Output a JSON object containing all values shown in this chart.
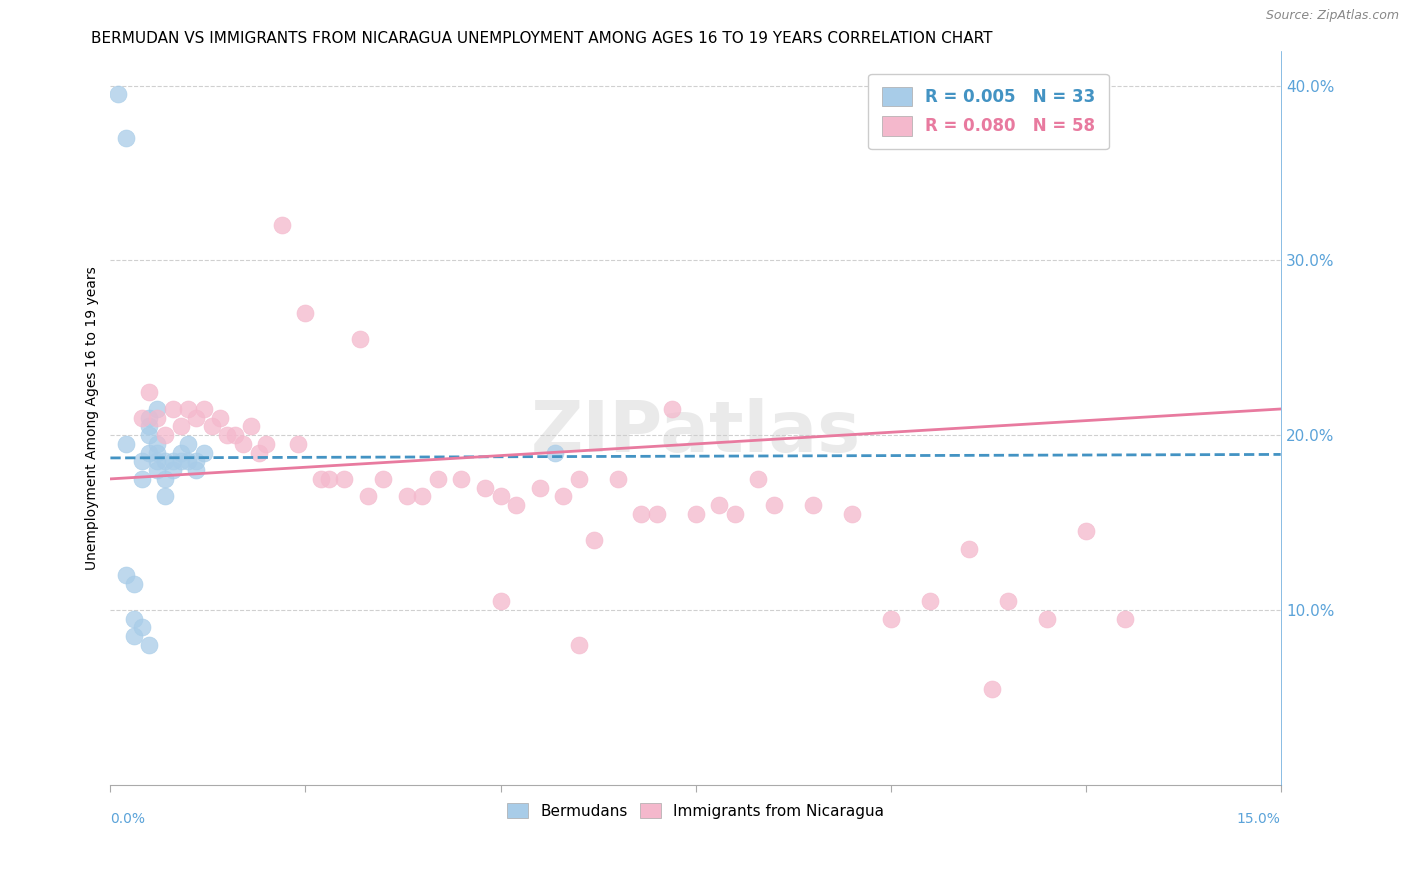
{
  "title": "BERMUDAN VS IMMIGRANTS FROM NICARAGUA UNEMPLOYMENT AMONG AGES 16 TO 19 YEARS CORRELATION CHART",
  "source": "Source: ZipAtlas.com",
  "ylabel": "Unemployment Among Ages 16 to 19 years",
  "xmin": 0.0,
  "xmax": 0.15,
  "ymin": 0.0,
  "ymax": 0.42,
  "legend_blue_R": "0.005",
  "legend_blue_N": "33",
  "legend_pink_R": "0.080",
  "legend_pink_N": "58",
  "watermark": "ZIPatlas",
  "blue_color": "#a8cce8",
  "pink_color": "#f4b8cc",
  "blue_line_color": "#4393c3",
  "pink_line_color": "#e87a9f",
  "blue_line_x0": 0.0,
  "blue_line_y0": 0.187,
  "blue_line_x1": 0.15,
  "blue_line_y1": 0.189,
  "pink_line_x0": 0.0,
  "pink_line_y0": 0.175,
  "pink_line_x1": 0.15,
  "pink_line_y1": 0.215,
  "right_yticks": [
    0.0,
    0.1,
    0.2,
    0.3,
    0.4
  ],
  "right_yticklabels": [
    "",
    "10.0%",
    "20.0%",
    "30.0%",
    "40.0%"
  ],
  "bermudans_x": [
    0.001,
    0.002,
    0.002,
    0.002,
    0.003,
    0.003,
    0.003,
    0.004,
    0.004,
    0.004,
    0.005,
    0.005,
    0.005,
    0.005,
    0.005,
    0.006,
    0.006,
    0.006,
    0.006,
    0.006,
    0.007,
    0.007,
    0.007,
    0.008,
    0.008,
    0.009,
    0.009,
    0.01,
    0.01,
    0.011,
    0.011,
    0.012,
    0.057
  ],
  "bermudans_y": [
    0.395,
    0.37,
    0.195,
    0.12,
    0.115,
    0.095,
    0.085,
    0.185,
    0.175,
    0.09,
    0.21,
    0.205,
    0.2,
    0.19,
    0.08,
    0.215,
    0.195,
    0.19,
    0.185,
    0.18,
    0.185,
    0.175,
    0.165,
    0.185,
    0.18,
    0.19,
    0.185,
    0.195,
    0.185,
    0.185,
    0.18,
    0.19,
    0.19
  ],
  "nicaragua_x": [
    0.004,
    0.005,
    0.006,
    0.007,
    0.008,
    0.009,
    0.01,
    0.011,
    0.012,
    0.013,
    0.014,
    0.015,
    0.016,
    0.017,
    0.018,
    0.019,
    0.02,
    0.022,
    0.024,
    0.025,
    0.027,
    0.028,
    0.03,
    0.032,
    0.033,
    0.035,
    0.038,
    0.04,
    0.042,
    0.045,
    0.048,
    0.05,
    0.052,
    0.055,
    0.058,
    0.06,
    0.062,
    0.065,
    0.068,
    0.07,
    0.072,
    0.075,
    0.078,
    0.08,
    0.083,
    0.085,
    0.09,
    0.095,
    0.1,
    0.105,
    0.11,
    0.113,
    0.115,
    0.12,
    0.125,
    0.13,
    0.05,
    0.06
  ],
  "nicaragua_y": [
    0.21,
    0.225,
    0.21,
    0.2,
    0.215,
    0.205,
    0.215,
    0.21,
    0.215,
    0.205,
    0.21,
    0.2,
    0.2,
    0.195,
    0.205,
    0.19,
    0.195,
    0.32,
    0.195,
    0.27,
    0.175,
    0.175,
    0.175,
    0.255,
    0.165,
    0.175,
    0.165,
    0.165,
    0.175,
    0.175,
    0.17,
    0.165,
    0.16,
    0.17,
    0.165,
    0.175,
    0.14,
    0.175,
    0.155,
    0.155,
    0.215,
    0.155,
    0.16,
    0.155,
    0.175,
    0.16,
    0.16,
    0.155,
    0.095,
    0.105,
    0.135,
    0.055,
    0.105,
    0.095,
    0.145,
    0.095,
    0.105,
    0.08
  ]
}
